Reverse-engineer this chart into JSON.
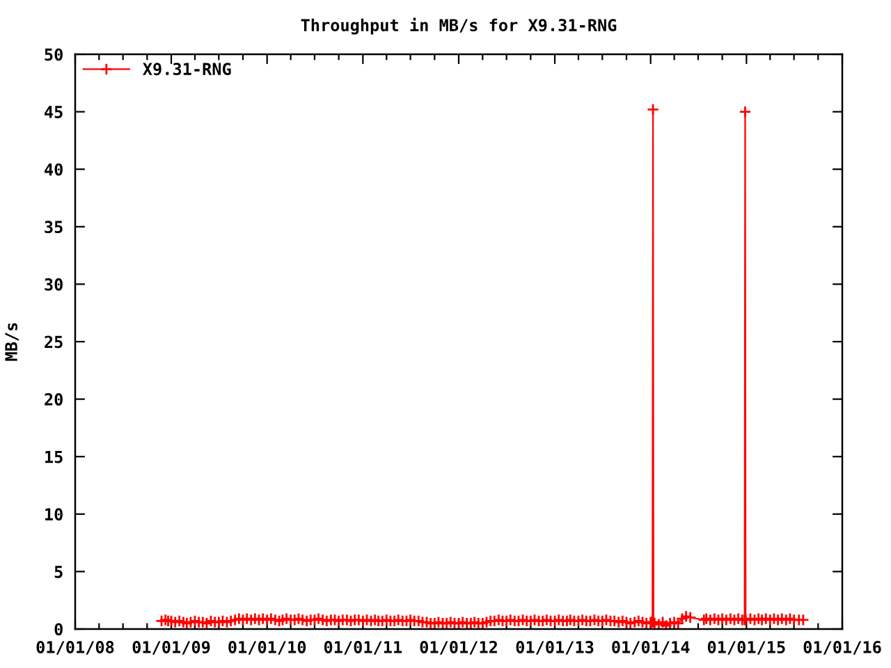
{
  "chart_data": {
    "type": "line",
    "title": "Throughput in MB/s for X9.31-RNG",
    "ylabel": "MB/s",
    "xlim": [
      "2008-01-01",
      "2016-01-01"
    ],
    "ylim": [
      0,
      50
    ],
    "xticks": [
      {
        "value": "2008-01-01",
        "label": "01/01/08"
      },
      {
        "value": "2008-04-01",
        "label": null
      },
      {
        "value": "2008-07-01",
        "label": null
      },
      {
        "value": "2008-10-01",
        "label": null
      },
      {
        "value": "2009-01-01",
        "label": "01/01/09"
      },
      {
        "value": "2009-04-01",
        "label": null
      },
      {
        "value": "2009-07-01",
        "label": null
      },
      {
        "value": "2009-10-01",
        "label": null
      },
      {
        "value": "2010-01-01",
        "label": "01/01/10"
      },
      {
        "value": "2010-04-01",
        "label": null
      },
      {
        "value": "2010-07-01",
        "label": null
      },
      {
        "value": "2010-10-01",
        "label": null
      },
      {
        "value": "2011-01-01",
        "label": "01/01/11"
      },
      {
        "value": "2011-04-01",
        "label": null
      },
      {
        "value": "2011-07-01",
        "label": null
      },
      {
        "value": "2011-10-01",
        "label": null
      },
      {
        "value": "2012-01-01",
        "label": "01/01/12"
      },
      {
        "value": "2012-04-01",
        "label": null
      },
      {
        "value": "2012-07-01",
        "label": null
      },
      {
        "value": "2012-10-01",
        "label": null
      },
      {
        "value": "2013-01-01",
        "label": "01/01/13"
      },
      {
        "value": "2013-04-01",
        "label": null
      },
      {
        "value": "2013-07-01",
        "label": null
      },
      {
        "value": "2013-10-01",
        "label": null
      },
      {
        "value": "2014-01-01",
        "label": "01/01/14"
      },
      {
        "value": "2014-04-01",
        "label": null
      },
      {
        "value": "2014-07-01",
        "label": null
      },
      {
        "value": "2014-10-01",
        "label": null
      },
      {
        "value": "2015-01-01",
        "label": "01/01/15"
      },
      {
        "value": "2015-04-01",
        "label": null
      },
      {
        "value": "2015-07-01",
        "label": null
      },
      {
        "value": "2015-10-01",
        "label": null
      },
      {
        "value": "2016-01-01",
        "label": "01/01/16"
      }
    ],
    "yticks": [
      0,
      5,
      10,
      15,
      20,
      25,
      30,
      35,
      40,
      45,
      50
    ],
    "legend": "top left",
    "marker": "cross",
    "line_style": "solid",
    "series": [
      {
        "name": "X9.31-RNG",
        "color": "#ff0000",
        "x": [
          "2008-11-25",
          "2008-12-10",
          "2008-12-20",
          "2009-01-01",
          "2009-01-16",
          "2009-02-01",
          "2009-02-16",
          "2009-03-01",
          "2009-03-16",
          "2009-04-01",
          "2009-04-16",
          "2009-05-01",
          "2009-05-16",
          "2009-06-01",
          "2009-06-16",
          "2009-07-01",
          "2009-07-16",
          "2009-08-01",
          "2009-08-16",
          "2009-09-01",
          "2009-09-16",
          "2009-10-01",
          "2009-10-16",
          "2009-11-01",
          "2009-11-16",
          "2009-12-01",
          "2009-12-16",
          "2010-01-01",
          "2010-01-16",
          "2010-02-01",
          "2010-02-16",
          "2010-03-01",
          "2010-03-16",
          "2010-04-01",
          "2010-04-16",
          "2010-05-01",
          "2010-05-16",
          "2010-06-01",
          "2010-06-16",
          "2010-07-01",
          "2010-07-16",
          "2010-08-01",
          "2010-08-16",
          "2010-09-01",
          "2010-09-16",
          "2010-10-01",
          "2010-10-16",
          "2010-11-01",
          "2010-11-16",
          "2010-12-01",
          "2010-12-16",
          "2011-01-01",
          "2011-01-16",
          "2011-02-01",
          "2011-02-16",
          "2011-03-01",
          "2011-03-16",
          "2011-04-01",
          "2011-04-16",
          "2011-05-01",
          "2011-05-16",
          "2011-06-01",
          "2011-06-16",
          "2011-07-01",
          "2011-07-16",
          "2011-08-01",
          "2011-08-16",
          "2011-09-01",
          "2011-09-16",
          "2011-10-01",
          "2011-10-16",
          "2011-11-01",
          "2011-11-16",
          "2011-12-01",
          "2011-12-16",
          "2012-01-01",
          "2012-01-16",
          "2012-02-01",
          "2012-02-16",
          "2012-03-01",
          "2012-03-16",
          "2012-04-01",
          "2012-04-16",
          "2012-05-01",
          "2012-05-16",
          "2012-06-01",
          "2012-06-16",
          "2012-07-01",
          "2012-07-16",
          "2012-08-01",
          "2012-08-16",
          "2012-09-01",
          "2012-09-16",
          "2012-10-01",
          "2012-10-16",
          "2012-11-01",
          "2012-11-16",
          "2012-12-01",
          "2012-12-16",
          "2013-01-01",
          "2013-01-16",
          "2013-02-01",
          "2013-02-16",
          "2013-03-01",
          "2013-03-16",
          "2013-04-01",
          "2013-04-16",
          "2013-05-01",
          "2013-05-16",
          "2013-06-01",
          "2013-06-16",
          "2013-07-01",
          "2013-07-16",
          "2013-08-01",
          "2013-08-16",
          "2013-09-01",
          "2013-09-16",
          "2013-10-01",
          "2013-10-16",
          "2013-11-01",
          "2013-11-16",
          "2013-12-01",
          "2013-12-16",
          "2014-01-01",
          "2014-01-08",
          "2014-01-10",
          "2014-01-12",
          "2014-01-16",
          "2014-02-01",
          "2014-02-16",
          "2014-03-01",
          "2014-03-16",
          "2014-04-01",
          "2014-04-16",
          "2014-05-01",
          "2014-05-16",
          "2014-06-01",
          "2014-07-23",
          "2014-08-01",
          "2014-08-16",
          "2014-09-01",
          "2014-09-16",
          "2014-10-01",
          "2014-10-16",
          "2014-11-01",
          "2014-11-16",
          "2014-12-01",
          "2014-12-16",
          "2014-12-25",
          "2014-12-27",
          "2014-12-29",
          "2015-01-16",
          "2015-02-01",
          "2015-02-16",
          "2015-03-01",
          "2015-03-16",
          "2015-04-01",
          "2015-04-16",
          "2015-05-01",
          "2015-05-16",
          "2015-06-01",
          "2015-06-16",
          "2015-07-01",
          "2015-07-20",
          "2015-08-05"
        ],
        "values": [
          0.7,
          0.8,
          0.7,
          0.7,
          0.6,
          0.7,
          0.6,
          0.5,
          0.6,
          0.7,
          0.6,
          0.6,
          0.5,
          0.7,
          0.6,
          0.6,
          0.7,
          0.6,
          0.7,
          0.8,
          0.9,
          0.8,
          0.9,
          0.8,
          0.9,
          0.8,
          0.9,
          0.8,
          0.9,
          0.8,
          0.7,
          0.8,
          0.9,
          0.8,
          0.8,
          0.9,
          0.8,
          0.7,
          0.8,
          0.8,
          0.9,
          0.8,
          0.7,
          0.8,
          0.8,
          0.7,
          0.8,
          0.8,
          0.7,
          0.8,
          0.8,
          0.7,
          0.8,
          0.7,
          0.8,
          0.7,
          0.7,
          0.8,
          0.7,
          0.7,
          0.8,
          0.7,
          0.7,
          0.8,
          0.7,
          0.7,
          0.6,
          0.6,
          0.5,
          0.5,
          0.6,
          0.5,
          0.5,
          0.6,
          0.5,
          0.5,
          0.6,
          0.5,
          0.5,
          0.6,
          0.5,
          0.5,
          0.6,
          0.7,
          0.7,
          0.8,
          0.7,
          0.7,
          0.8,
          0.7,
          0.7,
          0.8,
          0.7,
          0.7,
          0.8,
          0.7,
          0.7,
          0.8,
          0.7,
          0.7,
          0.8,
          0.7,
          0.7,
          0.8,
          0.7,
          0.7,
          0.8,
          0.7,
          0.7,
          0.8,
          0.7,
          0.7,
          0.8,
          0.7,
          0.7,
          0.6,
          0.7,
          0.6,
          0.5,
          0.6,
          0.7,
          0.6,
          0.5,
          0.6,
          0.6,
          45.2,
          0.6,
          0.5,
          0.4,
          0.6,
          0.3,
          0.5,
          0.6,
          0.5,
          0.9,
          1.1,
          1.0,
          0.8,
          0.9,
          0.8,
          0.9,
          0.8,
          0.9,
          0.8,
          0.9,
          0.8,
          0.9,
          0.8,
          0.8,
          45.0,
          0.8,
          0.9,
          0.8,
          0.9,
          0.8,
          0.9,
          0.8,
          0.9,
          0.8,
          0.9,
          0.8,
          0.9,
          0.8,
          0.8,
          0.8
        ]
      }
    ]
  }
}
